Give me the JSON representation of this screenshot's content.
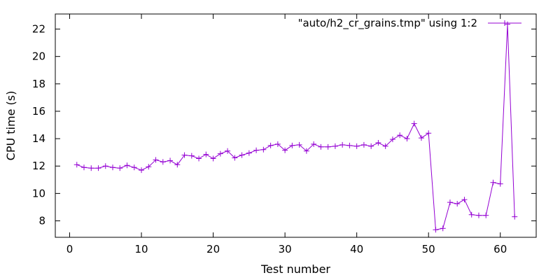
{
  "chart_data": {
    "type": "line",
    "xlabel": "Test number",
    "ylabel": "CPU time (s)",
    "xlim": [
      -2,
      65
    ],
    "ylim": [
      6.8,
      23.1
    ],
    "x_ticks": [
      0,
      10,
      20,
      30,
      40,
      50,
      60
    ],
    "y_ticks": [
      8,
      10,
      12,
      14,
      16,
      18,
      20,
      22
    ],
    "grid": false,
    "legend_position": "top-right",
    "colors": {
      "series": "#9400d3",
      "axes": "#000000",
      "background": "#ffffff"
    },
    "series": [
      {
        "name": "\"auto/h2_cr_grains.tmp\" using 1:2",
        "marker": "plus",
        "x": [
          1,
          2,
          3,
          4,
          5,
          6,
          7,
          8,
          9,
          10,
          11,
          12,
          13,
          14,
          15,
          16,
          17,
          18,
          19,
          20,
          21,
          22,
          23,
          24,
          25,
          26,
          27,
          28,
          29,
          30,
          31,
          32,
          33,
          34,
          35,
          36,
          37,
          38,
          39,
          40,
          41,
          42,
          43,
          44,
          45,
          46,
          47,
          48,
          49,
          50,
          51,
          52,
          53,
          54,
          55,
          56,
          57,
          58,
          59,
          60,
          61,
          62
        ],
        "values": [
          12.1,
          11.9,
          11.85,
          11.85,
          12.0,
          11.9,
          11.85,
          12.05,
          11.9,
          11.7,
          11.95,
          12.45,
          12.3,
          12.4,
          12.1,
          12.8,
          12.75,
          12.55,
          12.85,
          12.55,
          12.9,
          13.1,
          12.6,
          12.8,
          12.95,
          13.15,
          13.2,
          13.5,
          13.6,
          13.15,
          13.5,
          13.55,
          13.1,
          13.6,
          13.4,
          13.4,
          13.45,
          13.55,
          13.5,
          13.45,
          13.55,
          13.45,
          13.7,
          13.45,
          13.95,
          14.25,
          14.0,
          15.1,
          14.05,
          14.4,
          7.35,
          7.45,
          9.35,
          9.25,
          9.55,
          8.45,
          8.4,
          8.4,
          10.8,
          10.7,
          22.35,
          8.3
        ]
      }
    ]
  }
}
